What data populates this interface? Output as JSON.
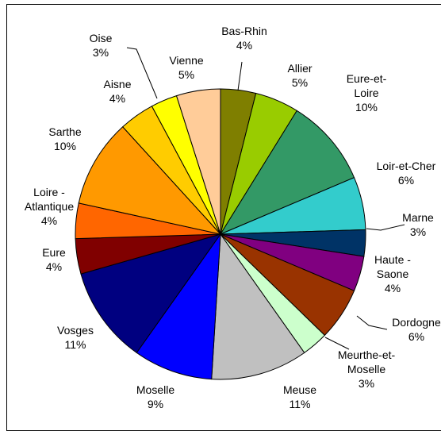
{
  "chart_data": {
    "type": "pie",
    "categories": [
      "Bas-Rhin",
      "Allier",
      "Eure-et-\nLoire",
      "Loir-et-Cher",
      "Marne",
      "Haute -\nSaone",
      "Dordogne",
      "Meurthe-et-\nMoselle",
      "Meuse",
      "Moselle",
      "Vosges",
      "Eure",
      "Loire -\nAtlantique",
      "Sarthe",
      "Aisne",
      "Oise",
      "Vienne"
    ],
    "values": [
      4,
      5,
      10,
      6,
      3,
      4,
      6,
      3,
      11,
      9,
      11,
      4,
      4,
      10,
      4,
      3,
      5
    ],
    "value_labels": [
      "4%",
      "5%",
      "10%",
      "6%",
      "3%",
      "4%",
      "6%",
      "3%",
      "11%",
      "9%",
      "11%",
      "4%",
      "4%",
      "10%",
      "4%",
      "3%",
      "5%"
    ],
    "colors": [
      "#7f7f00",
      "#99cc00",
      "#339966",
      "#33cccc",
      "#003366",
      "#800080",
      "#993300",
      "#ccffcc",
      "#c0c0c0",
      "#0000ff",
      "#000080",
      "#800000",
      "#ff6600",
      "#ff9900",
      "#ffcc00",
      "#ffff00",
      "#ffcc99"
    ]
  }
}
